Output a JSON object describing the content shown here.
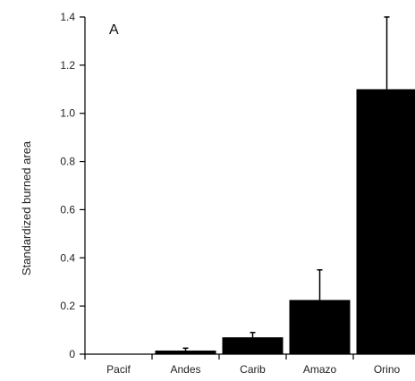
{
  "chart_data": {
    "type": "bar",
    "panel_label": "A",
    "ylabel": "Standardized burned area",
    "xlabel": "",
    "categories": [
      "Pacif",
      "Andes",
      "Carib",
      "Amazo",
      "Orino"
    ],
    "values": [
      0.0,
      0.015,
      0.07,
      0.225,
      1.1
    ],
    "error_upper": [
      0.0,
      0.025,
      0.09,
      0.35,
      1.4
    ],
    "ylim": [
      0,
      1.4
    ],
    "yticks": [
      "0",
      "0.2",
      "0.4",
      "0.6",
      "0.8",
      "1.0",
      "1.2",
      "1.4"
    ],
    "grid": false,
    "bar_color": "#000000"
  }
}
